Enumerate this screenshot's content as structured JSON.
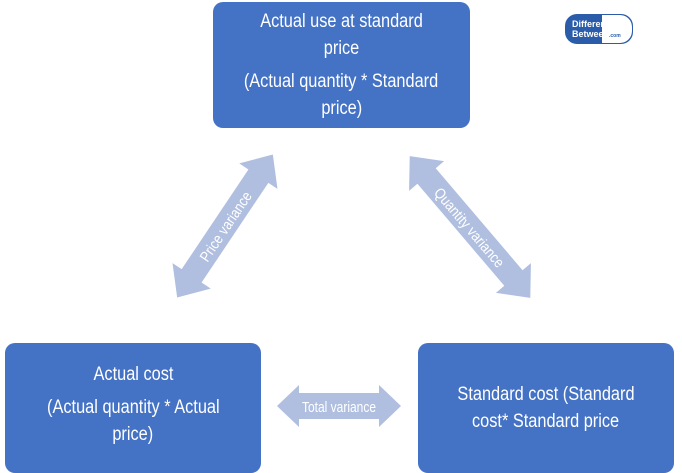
{
  "nodes": {
    "top": {
      "title": "Actual use at standard price",
      "formula_line1": "(Actual quantity * Standard",
      "formula_line2": "price)"
    },
    "bottom_left": {
      "title": "Actual cost",
      "formula_line1": "(Actual quantity * Actual",
      "formula_line2": "price)"
    },
    "bottom_right": {
      "line1": "Standard cost (Standard",
      "line2": "cost* Standard price"
    }
  },
  "edges": {
    "price": "Price variance",
    "quantity": "Quantity variance",
    "total": "Total variance"
  },
  "logo": {
    "text": "DifferenceBetween.com"
  },
  "colors": {
    "box": "#4472C4",
    "arrow": "#B0BFE0",
    "text": "#FFFFFF"
  }
}
